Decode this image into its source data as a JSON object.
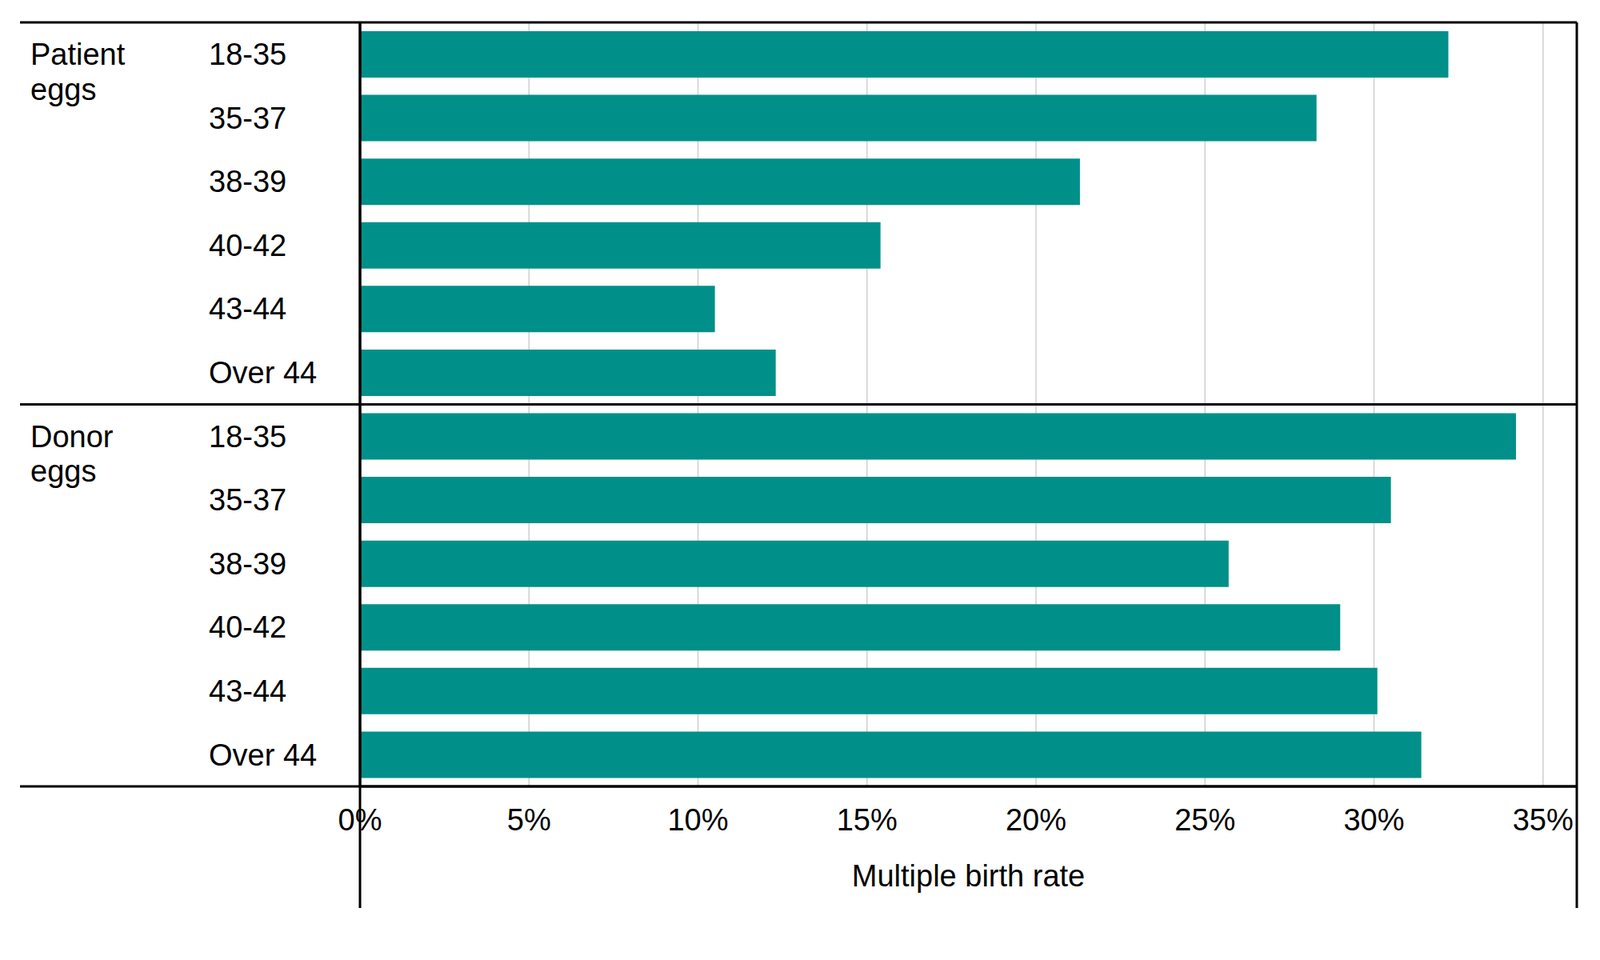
{
  "chart_data": {
    "type": "bar",
    "orientation": "horizontal",
    "x_label": "Multiple birth rate",
    "color": "#009089",
    "grid": true,
    "xlim": [
      0,
      36
    ],
    "xticks": [
      {
        "value": 0,
        "label": "0%"
      },
      {
        "value": 5,
        "label": "5%"
      },
      {
        "value": 10,
        "label": "10%"
      },
      {
        "value": 15,
        "label": "15%"
      },
      {
        "value": 20,
        "label": "20%"
      },
      {
        "value": 25,
        "label": "25%"
      },
      {
        "value": 30,
        "label": "30%"
      },
      {
        "value": 35,
        "label": "35%"
      }
    ],
    "groups": [
      {
        "label": "Patient eggs",
        "categories": [
          "18-35",
          "35-37",
          "38-39",
          "40-42",
          "43-44",
          "Over 44"
        ],
        "values": [
          32.2,
          28.3,
          21.3,
          15.4,
          10.5,
          12.3
        ]
      },
      {
        "label": "Donor eggs",
        "categories": [
          "18-35",
          "35-37",
          "38-39",
          "40-42",
          "43-44",
          "Over 44"
        ],
        "values": [
          34.2,
          30.5,
          25.7,
          29.0,
          30.1,
          31.4
        ]
      }
    ]
  }
}
